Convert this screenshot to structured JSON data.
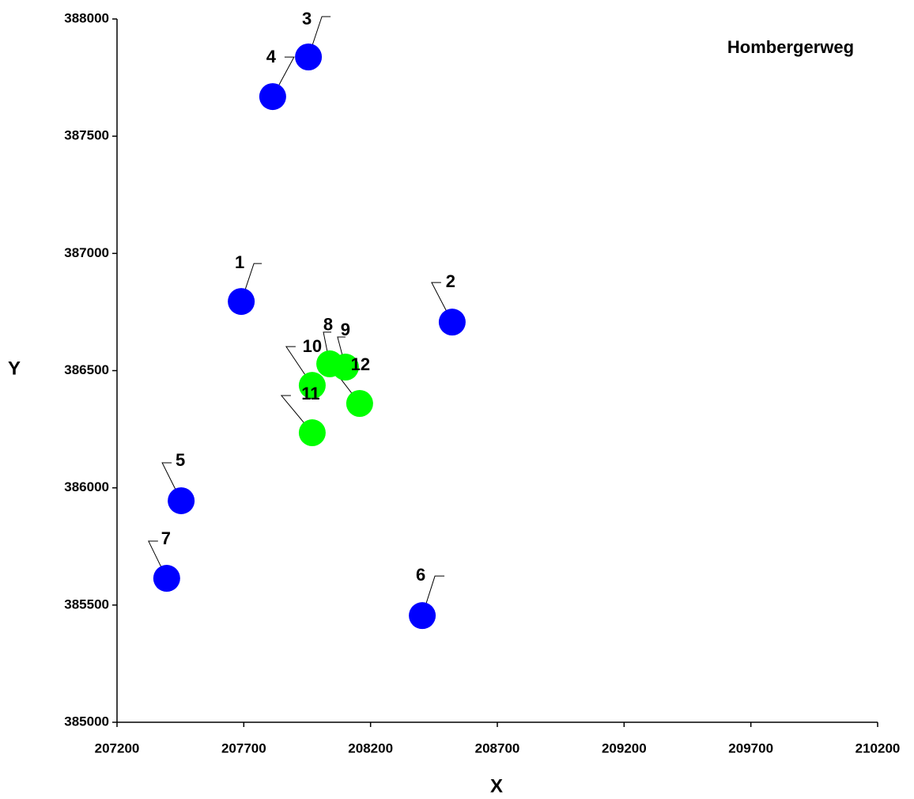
{
  "chart_data": {
    "type": "scatter",
    "title": "Hombergerweg",
    "x_label": "X",
    "y_label": "Y",
    "xlim": [
      207200,
      210200
    ],
    "xticks": [
      207200,
      207700,
      208200,
      208700,
      209200,
      209700,
      210200
    ],
    "ylim": [
      385000,
      388000
    ],
    "yticks": [
      385000,
      385500,
      386000,
      386500,
      387000,
      387500,
      388000
    ],
    "series": [
      {
        "color": "#0000ff",
        "labels": [
          "1",
          "2",
          "3",
          "4",
          "5",
          "6",
          "7"
        ],
        "x": [
          207690,
          208522,
          207955,
          207814,
          207453,
          208404,
          207396
        ],
        "values": [
          386795,
          386707,
          387838,
          387669,
          385945,
          385455,
          385614
        ]
      },
      {
        "color": "#00ff00",
        "labels": [
          "8",
          "9",
          "10",
          "11",
          "12"
        ],
        "x": [
          208039,
          208101,
          207970,
          207970,
          208157
        ],
        "values": [
          386529,
          386515,
          386437,
          386235,
          386360
        ]
      }
    ]
  }
}
